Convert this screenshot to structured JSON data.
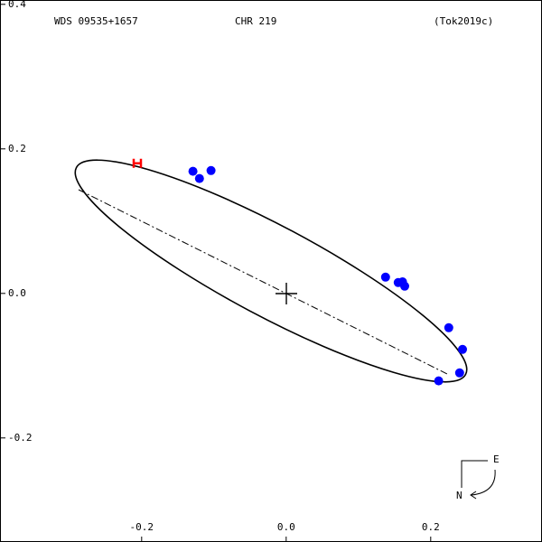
{
  "chart_data": {
    "type": "scatter",
    "texts": [
      "WDS 09535+1657",
      "CHR 219",
      "(Tok2019c)"
    ],
    "compass": [
      "E",
      "N"
    ],
    "xlim": [
      -0.396,
      0.354
    ],
    "ylim": [
      -0.344,
      0.406
    ],
    "xticks": [
      -0.2,
      {
        "value": 0,
        "label": "0.0"
      },
      0.2
    ],
    "yticks": [
      {
        "value": 0.4,
        "label": "0.4"
      },
      {
        "value": 0.2,
        "label": "0.2"
      },
      {
        "value": 0,
        "label": "0.0"
      },
      -0.2
    ],
    "series": [
      {
        "color": "#0000ff",
        "marker": "circle",
        "x": [
          -0.129,
          -0.104,
          -0.12,
          0.1375,
          0.155,
          0.161,
          0.164,
          0.225,
          0.244,
          0.24,
          0.211
        ],
        "values": [
          0.169,
          0.17,
          0.159,
          0.0225,
          0.015,
          0.016,
          0.01,
          -0.0475,
          -0.0775,
          -0.11,
          -0.121
        ]
      },
      {
        "color": "#ff0000",
        "marker": "h",
        "x": [
          -0.206
        ],
        "values": [
          0.18
        ]
      }
    ]
  }
}
